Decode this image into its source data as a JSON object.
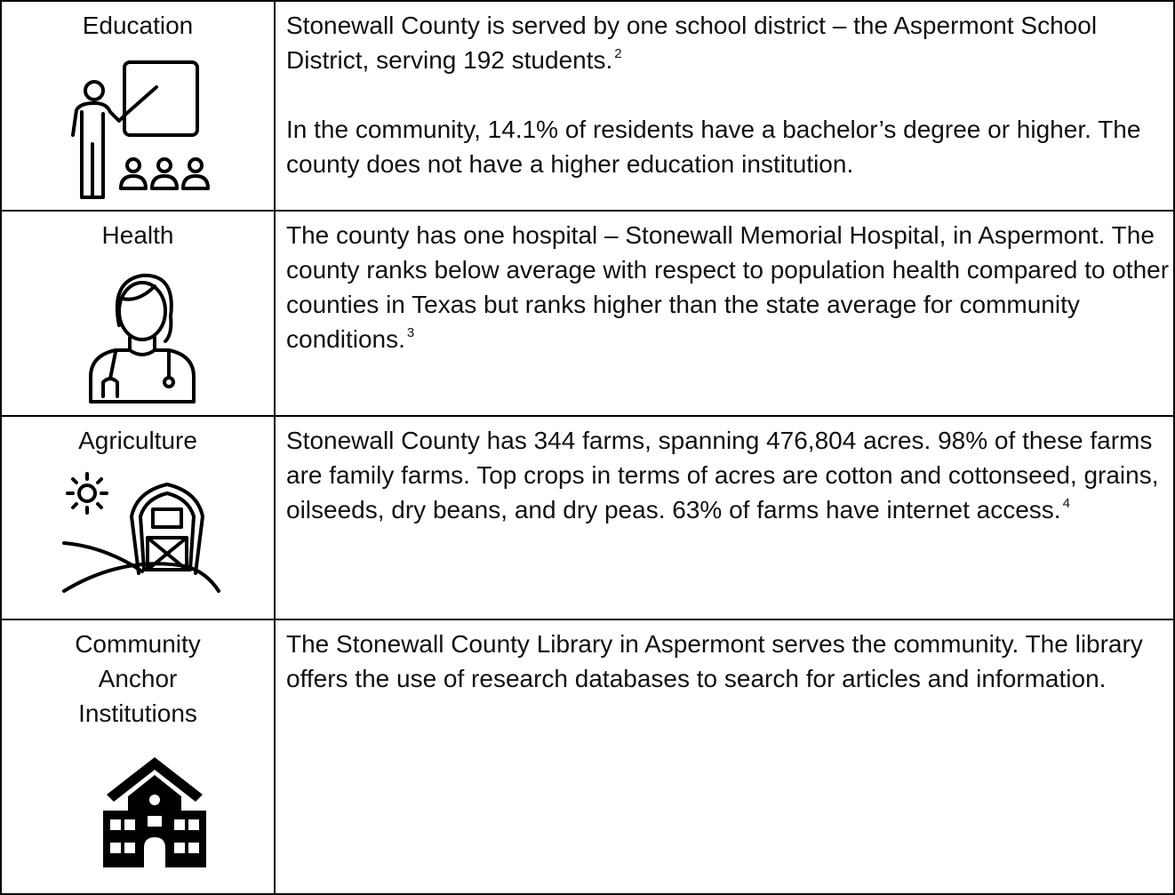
{
  "rows": [
    {
      "label": "Education",
      "paragraphs": [
        {
          "text": "Stonewall County is served by one school district – the Aspermont School District, serving 192 students.",
          "footnote": "2"
        },
        {
          "text": "In the community, 14.1% of residents have a bachelor’s degree or higher. The county does not have a higher education institution."
        }
      ]
    },
    {
      "label": "Health",
      "paragraphs": [
        {
          "text": "The county has one hospital – Stonewall Memorial Hospital, in Aspermont. The county ranks below average with respect to population health compared to other counties in Texas but ranks higher than the state average for community conditions.",
          "footnote": "3"
        }
      ]
    },
    {
      "label": "Agriculture",
      "paragraphs": [
        {
          "text": "Stonewall County has 344 farms, spanning 476,804 acres. 98% of these farms are family farms. Top crops in terms of acres are cotton and cottonseed, grains, oilseeds, dry beans, and dry peas. 63% of farms have internet access.",
          "footnote": "4"
        }
      ]
    },
    {
      "label": "Community Anchor Institutions",
      "paragraphs": [
        {
          "text": "The Stonewall County Library in Aspermont serves the community. The library offers the use of research databases to search for articles and information."
        }
      ]
    }
  ]
}
